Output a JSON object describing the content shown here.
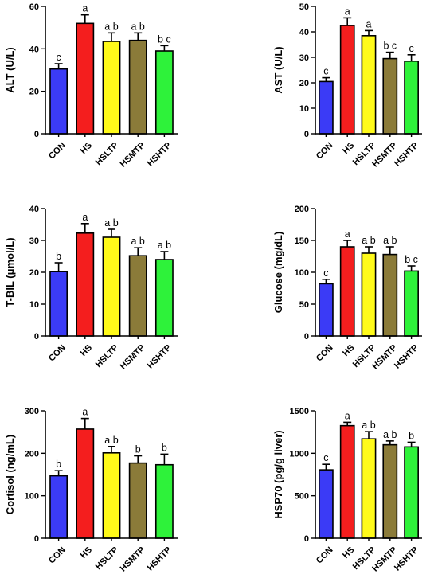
{
  "chart_data": [
    {
      "type": "bar",
      "categories": [
        "CON",
        "HS",
        "HSLTP",
        "HSMTP",
        "HSHTP"
      ],
      "values": [
        30.5,
        52,
        43.5,
        44,
        39
      ],
      "errors": [
        2.5,
        4,
        4,
        3.5,
        2.5
      ],
      "letters": [
        "c",
        "a",
        "a b",
        "a b",
        "b c"
      ],
      "ylabel": "ALT (U/L)",
      "ylim": [
        0,
        60
      ],
      "yticks": [
        0,
        20,
        40,
        60
      ],
      "colors": [
        "#3b3bf6",
        "#f41e1e",
        "#fffa1a",
        "#8b7b39",
        "#2ef23a"
      ]
    },
    {
      "type": "bar",
      "categories": [
        "CON",
        "HS",
        "HSLTP",
        "HSMTP",
        "HSHTP"
      ],
      "values": [
        20.5,
        42.5,
        38.5,
        29.5,
        28.5
      ],
      "errors": [
        1.5,
        3,
        2,
        2.5,
        2.5
      ],
      "letters": [
        "c",
        "a",
        "a",
        "b c",
        "c"
      ],
      "ylabel": "AST (U/L)",
      "ylim": [
        0,
        50
      ],
      "yticks": [
        0,
        10,
        20,
        30,
        40,
        50
      ],
      "colors": [
        "#3b3bf6",
        "#f41e1e",
        "#fffa1a",
        "#8b7b39",
        "#2ef23a"
      ]
    },
    {
      "type": "bar",
      "categories": [
        "CON",
        "HS",
        "HSLTP",
        "HSMTP",
        "HSHTP"
      ],
      "values": [
        20.2,
        32.3,
        31,
        25.2,
        24
      ],
      "errors": [
        2.8,
        3,
        2.5,
        2.5,
        2.5
      ],
      "letters": [
        "b",
        "a",
        "a b",
        "a b",
        "a b"
      ],
      "ylabel": "T-BIL (μmol/L)",
      "ylim": [
        0,
        40
      ],
      "yticks": [
        0,
        10,
        20,
        30,
        40
      ],
      "colors": [
        "#3b3bf6",
        "#f41e1e",
        "#fffa1a",
        "#8b7b39",
        "#2ef23a"
      ]
    },
    {
      "type": "bar",
      "categories": [
        "CON",
        "HS",
        "HSLTP",
        "HSMTP",
        "HSHTP"
      ],
      "values": [
        82,
        140,
        130,
        128,
        102
      ],
      "errors": [
        7,
        10,
        10,
        12,
        8
      ],
      "letters": [
        "c",
        "a",
        "a b",
        "a b",
        "b c"
      ],
      "ylabel": "Glucose (mg/dL)",
      "ylim": [
        0,
        200
      ],
      "yticks": [
        0,
        50,
        100,
        150,
        200
      ],
      "colors": [
        "#3b3bf6",
        "#f41e1e",
        "#fffa1a",
        "#8b7b39",
        "#2ef23a"
      ]
    },
    {
      "type": "bar",
      "categories": [
        "CON",
        "HS",
        "HSLTP",
        "HSMTP",
        "HSHTP"
      ],
      "values": [
        147,
        257,
        201,
        177,
        173
      ],
      "errors": [
        12,
        25,
        15,
        17,
        25
      ],
      "letters": [
        "b",
        "a",
        "a b",
        "b",
        "b"
      ],
      "ylabel": "Cortisol (ng/mL)",
      "ylim": [
        0,
        300
      ],
      "yticks": [
        0,
        100,
        200,
        300
      ],
      "colors": [
        "#3b3bf6",
        "#f41e1e",
        "#fffa1a",
        "#8b7b39",
        "#2ef23a"
      ]
    },
    {
      "type": "bar",
      "categories": [
        "CON",
        "HS",
        "HSLTP",
        "HSMTP",
        "HSHTP"
      ],
      "values": [
        805,
        1325,
        1170,
        1100,
        1075
      ],
      "errors": [
        65,
        40,
        85,
        45,
        55
      ],
      "letters": [
        "c",
        "a",
        "a b",
        "a b",
        "b"
      ],
      "ylabel": "HSP70 (pg/g liver)",
      "ylim": [
        0,
        1500
      ],
      "yticks": [
        0,
        500,
        1000,
        1500
      ],
      "colors": [
        "#3b3bf6",
        "#f41e1e",
        "#fffa1a",
        "#8b7b39",
        "#2ef23a"
      ]
    }
  ]
}
